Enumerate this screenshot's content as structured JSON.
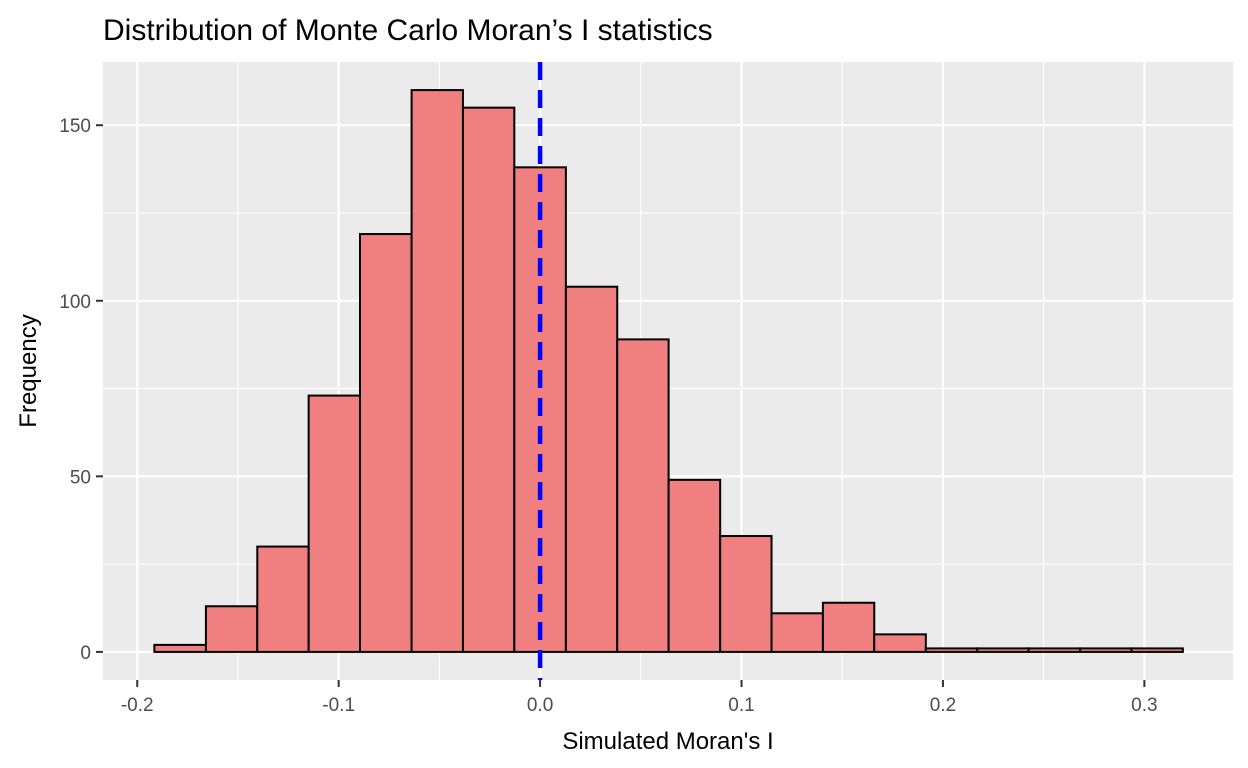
{
  "chart_data": {
    "type": "histogram",
    "title": "Distribution of Monte Carlo Moran’s I statistics",
    "xlabel": "Simulated Moran's I",
    "ylabel": "Frequency",
    "xlim": [
      -0.217,
      0.344
    ],
    "ylim": [
      -8,
      168
    ],
    "x_ticks": [
      {
        "value": -0.2,
        "label": "-0.2"
      },
      {
        "value": -0.1,
        "label": "-0.1"
      },
      {
        "value": 0.0,
        "label": "0.0"
      },
      {
        "value": 0.1,
        "label": "0.1"
      },
      {
        "value": 0.2,
        "label": "0.2"
      },
      {
        "value": 0.3,
        "label": "0.3"
      }
    ],
    "y_ticks": [
      {
        "value": 0,
        "label": "0"
      },
      {
        "value": 50,
        "label": "50"
      },
      {
        "value": 100,
        "label": "100"
      },
      {
        "value": 150,
        "label": "150"
      }
    ],
    "bins": [
      {
        "x0": -0.1915,
        "x1": -0.1659,
        "count": 2
      },
      {
        "x0": -0.1659,
        "x1": -0.1404,
        "count": 13
      },
      {
        "x0": -0.1404,
        "x1": -0.1149,
        "count": 30
      },
      {
        "x0": -0.1149,
        "x1": -0.0894,
        "count": 73
      },
      {
        "x0": -0.0894,
        "x1": -0.0638,
        "count": 119
      },
      {
        "x0": -0.0638,
        "x1": -0.0383,
        "count": 160
      },
      {
        "x0": -0.0383,
        "x1": -0.0128,
        "count": 155
      },
      {
        "x0": -0.0128,
        "x1": 0.0128,
        "count": 138
      },
      {
        "x0": 0.0128,
        "x1": 0.0383,
        "count": 104
      },
      {
        "x0": 0.0383,
        "x1": 0.0638,
        "count": 89
      },
      {
        "x0": 0.0638,
        "x1": 0.0894,
        "count": 49
      },
      {
        "x0": 0.0894,
        "x1": 0.1149,
        "count": 33
      },
      {
        "x0": 0.1149,
        "x1": 0.1404,
        "count": 11
      },
      {
        "x0": 0.1404,
        "x1": 0.1659,
        "count": 14
      },
      {
        "x0": 0.1659,
        "x1": 0.1915,
        "count": 5
      },
      {
        "x0": 0.1915,
        "x1": 0.217,
        "count": 1
      },
      {
        "x0": 0.217,
        "x1": 0.2425,
        "count": 1
      },
      {
        "x0": 0.2425,
        "x1": 0.2681,
        "count": 1
      },
      {
        "x0": 0.2681,
        "x1": 0.2936,
        "count": 1
      },
      {
        "x0": 0.2936,
        "x1": 0.3191,
        "count": 1
      }
    ],
    "reference_line": {
      "x": 0.0,
      "style": "dashed",
      "color": "#0000ff"
    },
    "bar_fill": "#f08080",
    "bar_outline": "#000000",
    "panel_background": "#ebebeb",
    "grid": true
  }
}
